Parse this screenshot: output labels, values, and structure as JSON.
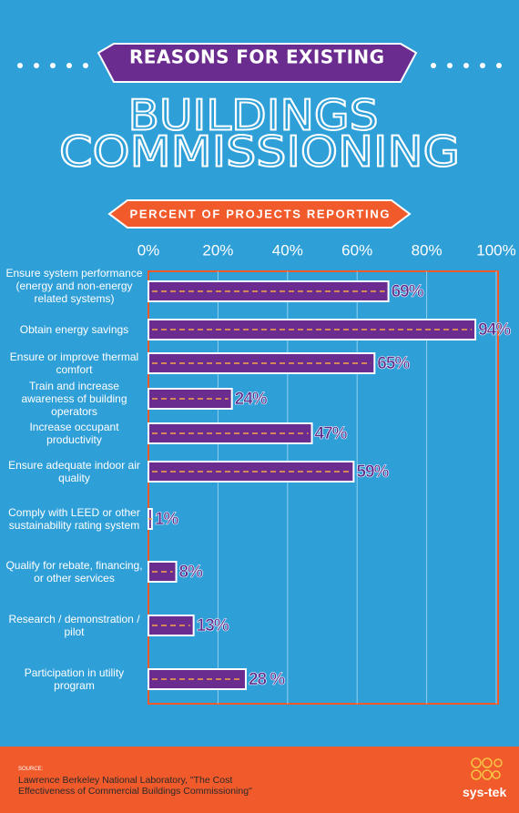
{
  "header": {
    "ribbon": "REASONS FOR EXISTING",
    "title_lines": [
      "BUILDINGS",
      "COMMISSIONING"
    ]
  },
  "chart_data": {
    "type": "bar",
    "orientation": "horizontal",
    "subtitle": "PERCENT OF PROJECTS REPORTING",
    "categories": [
      "Ensure system performance (energy and non-energy related systems)",
      "Obtain energy savings",
      "Ensure or improve thermal comfort",
      "Train and increase awareness of building operators",
      "Increase occupant productivity",
      "Ensure adequate indoor air quality",
      "Comply with LEED or other sustainability rating system",
      "Qualify for rebate, financing, or other services",
      "Research / demonstration / pilot",
      "Participation in utility program"
    ],
    "values": [
      69,
      94,
      65,
      24,
      47,
      59,
      1,
      8,
      13,
      28
    ],
    "value_labels": [
      "69%",
      "94%",
      "65%",
      "24%",
      "47%",
      "59%",
      "1%",
      "8%",
      "13%",
      "28 %"
    ],
    "color": "#6a2c8e",
    "xlim": [
      0,
      100
    ],
    "xticks": [
      {
        "value": 0,
        "label": "0%"
      },
      {
        "value": 20,
        "label": "20%"
      },
      {
        "value": 40,
        "label": "40%"
      },
      {
        "value": 60,
        "label": "60%"
      },
      {
        "value": 80,
        "label": "80%"
      },
      {
        "value": 100,
        "label": "100%"
      }
    ],
    "grid": true
  },
  "footer": {
    "source_label": "SOURCE:",
    "source": "Lawrence Berkeley National Laboratory, \"The Cost Effectiveness of Commercial Buildings Commissioning\"",
    "logo": "sys-tek"
  }
}
